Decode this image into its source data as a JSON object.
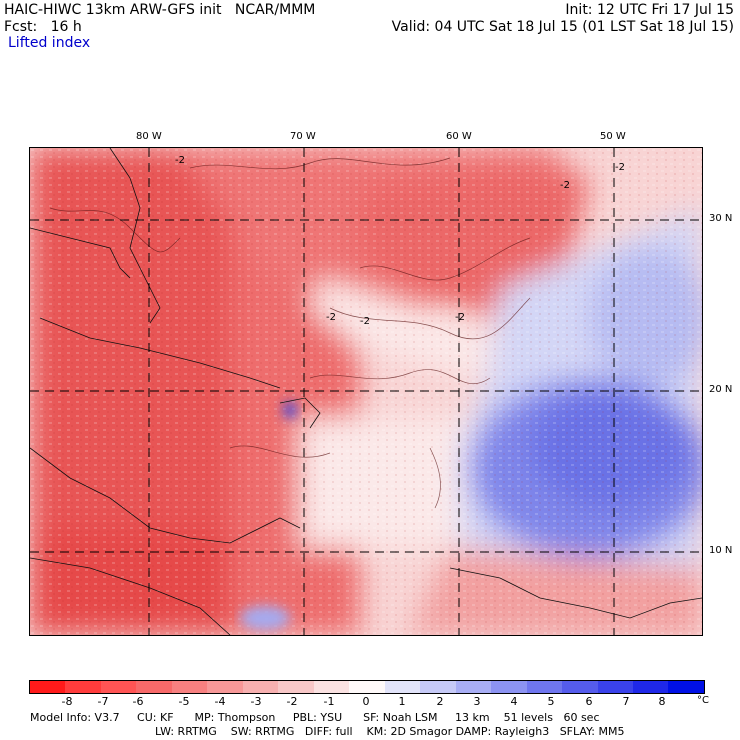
{
  "header": {
    "model_title": "HAIC-HIWC 13km ARW-GFS init   NCAR/MMM",
    "init": "Init: 12 UTC Fri 17 Jul 15",
    "fcst_label": "Fcst:   16 h",
    "valid": "Valid: 04 UTC Sat 18 Jul 15 (01 LST Sat 18 Jul 15)",
    "field": "Lifted index"
  },
  "map": {
    "lon_labels": [
      "80 W",
      "70 W",
      "60 W",
      "50 W"
    ],
    "lat_labels": [
      "30 N",
      "20 N",
      "10 N"
    ],
    "contour_labels": [
      "-2",
      "-2",
      "-2",
      "-2",
      "-2",
      "-2"
    ],
    "colors": {
      "red_strong": "#e94a4a",
      "red_mid": "#f18a8a",
      "red_light": "#f7c3c3",
      "white": "#fff5f5",
      "blue_light": "#c8cdf5",
      "blue_mid": "#7f86ea"
    }
  },
  "colorbar": {
    "ticks": [
      "-8",
      "-7",
      "-6",
      "-5",
      "-4",
      "-3",
      "-2",
      "-1",
      "0",
      "1",
      "2",
      "3",
      "4",
      "5",
      "6",
      "7",
      "8"
    ],
    "unit": "°C",
    "colors": [
      "#ff1a1a",
      "#ff3c3c",
      "#ff5454",
      "#f76969",
      "#f78080",
      "#f79898",
      "#f7b0b0",
      "#f8c8c8",
      "#fbe2e2",
      "#fffafa",
      "#e2e4fa",
      "#c6caf7",
      "#a8aef5",
      "#8c93f2",
      "#6f76ef",
      "#555cec",
      "#3a42ea",
      "#1f28e8",
      "#0010e6"
    ]
  },
  "footer": {
    "line1": "Model Info: V3.7     CU: KF      MP: Thompson     PBL: YSU      SF: Noah LSM     13 km    51 levels   60 sec",
    "line2": "LW: RRTMG    SW: RRTMG   DIFF: full    KM: 2D Smagor DAMP: Rayleigh3   SFLAY: MM5"
  }
}
